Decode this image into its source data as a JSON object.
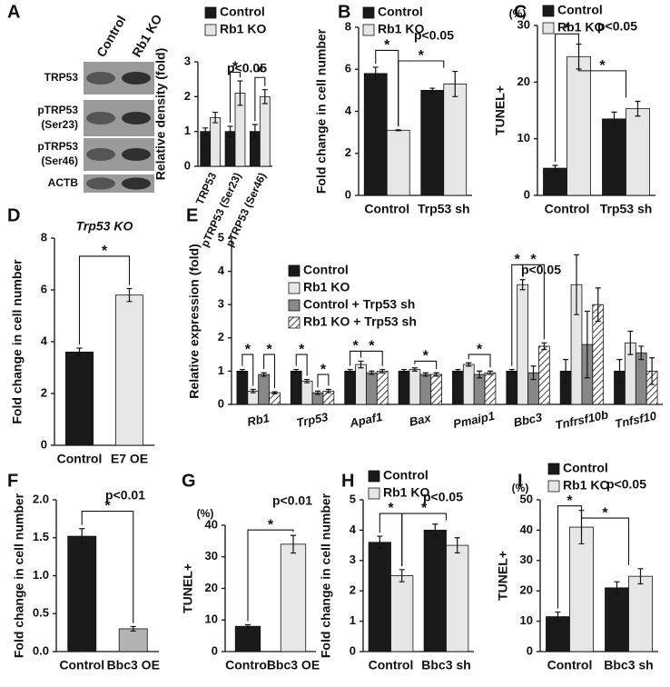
{
  "chart_data": [
    {
      "panel": "A",
      "type": "bar",
      "blot": {
        "columns": [
          "Control",
          "Rb1 KO"
        ],
        "rows": [
          [
            "TRP53"
          ],
          [
            "pTRP53",
            "(Ser23)"
          ],
          [
            "pTRP53",
            "(Ser46)"
          ],
          [
            "ACTB"
          ]
        ]
      },
      "ylabel": "Relative density (fold)",
      "categories": [
        "TRP53",
        "pTRP53 (Ser23)",
        "pTRP53 (Ser46)"
      ],
      "series": [
        {
          "name": "Control",
          "color": "#1a1a1a",
          "values": [
            1.0,
            1.0,
            1.0
          ],
          "errors": [
            0.1,
            0.15,
            0.2
          ]
        },
        {
          "name": "Rb1 KO",
          "color": "#e6e6e6",
          "values": [
            1.4,
            2.1,
            2.0
          ],
          "errors": [
            0.15,
            0.35,
            0.2
          ]
        }
      ],
      "ylim": [
        0,
        3
      ],
      "yticks": [
        0,
        1,
        2,
        3
      ],
      "pvalue": "p<0.05",
      "significance": [
        "*",
        "*"
      ]
    },
    {
      "panel": "B",
      "type": "bar",
      "ylabel": "Fold change in cell number",
      "categories": [
        "Control",
        "Trp53 sh"
      ],
      "series": [
        {
          "name": "Control",
          "color": "#1a1a1a",
          "values": [
            5.8,
            5.0
          ],
          "errors": [
            0.3,
            0.1
          ]
        },
        {
          "name": "Rb1 KO",
          "color": "#e6e6e6",
          "values": [
            3.1,
            5.3
          ],
          "errors": [
            0.02,
            0.6
          ]
        }
      ],
      "ylim": [
        0,
        8
      ],
      "yticks": [
        0,
        2,
        4,
        6,
        8
      ],
      "pvalue": "p<0.05",
      "significance": [
        "*",
        "*"
      ]
    },
    {
      "panel": "C",
      "type": "bar",
      "unit": "(%)",
      "ylabel": "TUNEL+",
      "categories": [
        "Control",
        "Trp53 sh"
      ],
      "series": [
        {
          "name": "Control",
          "color": "#1a1a1a",
          "values": [
            4.8,
            13.5
          ],
          "errors": [
            0.5,
            1.2
          ]
        },
        {
          "name": "Rb1 KO",
          "color": "#e6e6e6",
          "values": [
            24.5,
            15.3
          ],
          "errors": [
            2.2,
            1.3
          ]
        }
      ],
      "ylim": [
        0,
        30
      ],
      "yticks": [
        0,
        10,
        20,
        30
      ],
      "pvalue": "p<0.05",
      "significance": [
        "*",
        "*"
      ]
    },
    {
      "panel": "D",
      "type": "bar",
      "title": "Trp53 KO",
      "ylabel": "Fold change in cell number",
      "categories": [
        "Control",
        "E7 OE"
      ],
      "series": [
        {
          "colors": [
            "#1a1a1a",
            "#e6e6e6"
          ],
          "values": [
            3.6,
            5.8
          ],
          "errors": [
            0.15,
            0.25
          ]
        }
      ],
      "ylim": [
        0,
        8
      ],
      "yticks": [
        0,
        2,
        4,
        6,
        8
      ],
      "significance": [
        "*"
      ]
    },
    {
      "panel": "E",
      "type": "bar",
      "ylabel": "Relative expression (fold)",
      "categories": [
        "Rb1",
        "Trp53",
        "Apaf1",
        "Bax",
        "Pmaip1",
        "Bbc3",
        "Tnfrsf10b",
        "Tnfsf10"
      ],
      "series": [
        {
          "name": "Control",
          "color": "#1a1a1a",
          "values": [
            1,
            1,
            1,
            1,
            1,
            1,
            1,
            1
          ],
          "errors": [
            0.05,
            0.05,
            0.05,
            0.05,
            0.05,
            0.05,
            0.35,
            0.35
          ]
        },
        {
          "name": "Rb1 KO",
          "color": "#e6e6e6",
          "values": [
            0.4,
            0.7,
            1.2,
            1.05,
            1.2,
            3.6,
            3.6,
            1.85
          ],
          "errors": [
            0.05,
            0.05,
            0.1,
            0.05,
            0.05,
            0.15,
            0.9,
            0.35
          ]
        },
        {
          "name": "Control + Trp53 sh",
          "color": "#888888",
          "values": [
            0.9,
            0.35,
            0.95,
            0.9,
            0.9,
            0.95,
            1.8,
            1.55
          ],
          "errors": [
            0.05,
            0.05,
            0.05,
            0.05,
            0.1,
            0.2,
            1.0,
            0.2
          ]
        },
        {
          "name": "Rb1 KO + Trp53 sh",
          "color": "#ffffff",
          "hatch": true,
          "values": [
            0.35,
            0.4,
            1.0,
            0.9,
            0.95,
            1.75,
            3.0,
            1.0
          ],
          "errors": [
            0.03,
            0.05,
            0.05,
            0.05,
            0.05,
            0.1,
            0.5,
            0.4
          ]
        }
      ],
      "ylim": [
        0,
        5
      ],
      "yticks": [
        0,
        1,
        2,
        3,
        4,
        5
      ],
      "pvalue": "p<0.05",
      "significance": [
        "*",
        "*",
        "*",
        "*",
        "*",
        "*",
        "*",
        "*",
        "*",
        "*"
      ]
    },
    {
      "panel": "F",
      "type": "bar",
      "ylabel": "Fold change in cell number",
      "categories": [
        "Control",
        "Bbc3 OE"
      ],
      "series": [
        {
          "colors": [
            "#1a1a1a",
            "#b3b3b3"
          ],
          "values": [
            1.52,
            0.3
          ],
          "errors": [
            0.1,
            0.03
          ]
        }
      ],
      "ylim": [
        0,
        2
      ],
      "yticks": [
        {
          "value": 0,
          "label": "0.0"
        },
        0.5,
        {
          "value": 1,
          "label": "1.0"
        },
        1.5,
        {
          "value": 2,
          "label": "2.0"
        }
      ],
      "pvalue": "p<0.01",
      "significance": [
        "*"
      ]
    },
    {
      "panel": "G",
      "type": "bar",
      "unit": "(%)",
      "ylabel": "TUNEL+",
      "categories": [
        "Control",
        "Bbc3 OE"
      ],
      "series": [
        {
          "colors": [
            "#1a1a1a",
            "#e6e6e6"
          ],
          "values": [
            8,
            34
          ],
          "errors": [
            0.5,
            2.8
          ]
        }
      ],
      "ylim": [
        0,
        40
      ],
      "yticks": [
        0,
        10,
        20,
        30,
        40
      ],
      "pvalue": "p<0.01",
      "significance": [
        "*"
      ]
    },
    {
      "panel": "H",
      "type": "bar",
      "ylabel": "Fold change in cell number",
      "categories": [
        "Control",
        "Bbc3 sh"
      ],
      "series": [
        {
          "name": "Control",
          "color": "#1a1a1a",
          "values": [
            3.6,
            4.0
          ],
          "errors": [
            0.2,
            0.2
          ]
        },
        {
          "name": "Rb1 KO",
          "color": "#e6e6e6",
          "values": [
            2.5,
            3.5
          ],
          "errors": [
            0.2,
            0.25
          ]
        }
      ],
      "ylim": [
        0,
        5
      ],
      "yticks": [
        0,
        1,
        2,
        3,
        4,
        5
      ],
      "pvalue": "p<0.05",
      "significance": [
        "*",
        "*"
      ]
    },
    {
      "panel": "I",
      "type": "bar",
      "unit": "(%)",
      "ylabel": "TUNEL+",
      "categories": [
        "Control",
        "Bbc3 sh"
      ],
      "series": [
        {
          "name": "Control",
          "color": "#1a1a1a",
          "values": [
            11.5,
            21
          ],
          "errors": [
            1.5,
            2
          ]
        },
        {
          "name": "Rb1 KO",
          "color": "#e6e6e6",
          "values": [
            41,
            24.8
          ],
          "errors": [
            5.5,
            2.5
          ]
        }
      ],
      "ylim": [
        0,
        50
      ],
      "yticks": [
        0,
        10,
        20,
        30,
        40,
        50
      ],
      "pvalue": "p<0.05",
      "significance": [
        "*",
        "*"
      ]
    }
  ]
}
